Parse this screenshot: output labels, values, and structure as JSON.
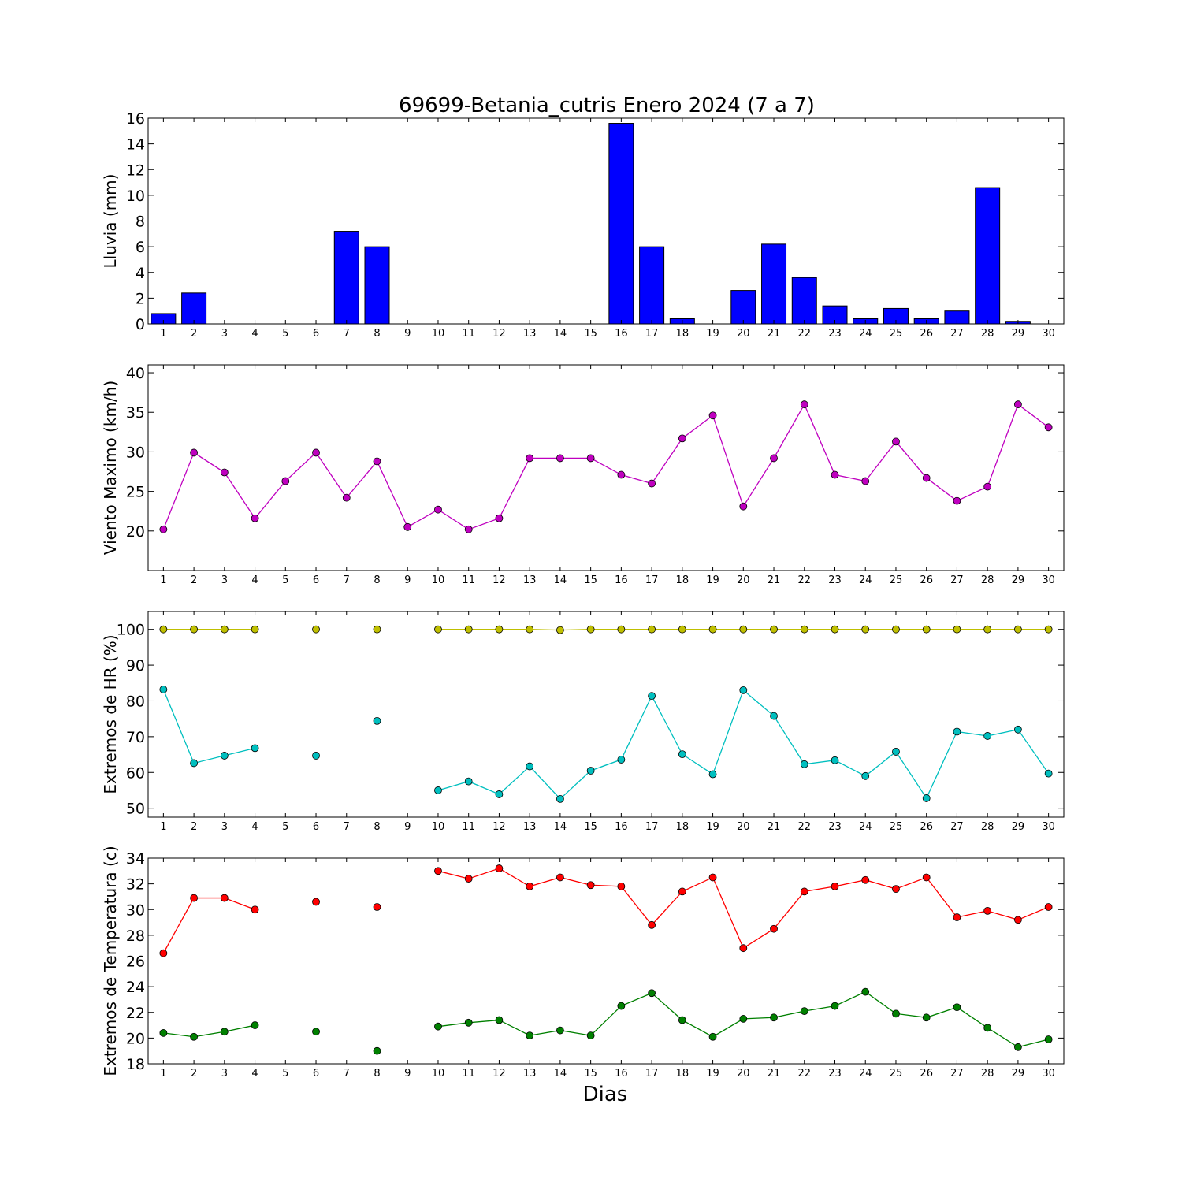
{
  "chart_data": {
    "title": "69699-Betania_cutris Enero 2024  (7 a 7)",
    "xlabel": "Dias",
    "days": [
      1,
      2,
      3,
      4,
      5,
      6,
      7,
      8,
      9,
      10,
      11,
      12,
      13,
      14,
      15,
      16,
      17,
      18,
      19,
      20,
      21,
      22,
      23,
      24,
      25,
      26,
      27,
      28,
      29,
      30
    ],
    "panels": [
      {
        "id": "lluvia",
        "type": "bar",
        "ylabel": "Lluvia (mm)",
        "ylim": [
          0,
          16
        ],
        "yticks": [
          0,
          2,
          4,
          6,
          8,
          10,
          12,
          14,
          16
        ],
        "series": [
          {
            "color": "#0000ff",
            "values": [
              0.8,
              2.4,
              0,
              0,
              0,
              0,
              7.2,
              6.0,
              0,
              0,
              0,
              0,
              0,
              0,
              0,
              15.6,
              6.0,
              0.4,
              0,
              2.6,
              6.2,
              3.6,
              1.4,
              0.4,
              1.2,
              0.4,
              1.0,
              10.6,
              0.2,
              0
            ]
          }
        ]
      },
      {
        "id": "viento",
        "type": "line",
        "ylabel": "Viento Maximo (km/h)",
        "ylim": [
          15,
          41
        ],
        "yticks": [
          20,
          25,
          30,
          35,
          40
        ],
        "series": [
          {
            "color": "#bf00bf",
            "values": [
              20.2,
              29.9,
              27.4,
              21.6,
              26.3,
              29.9,
              24.2,
              28.8,
              20.5,
              22.7,
              20.2,
              21.6,
              29.2,
              29.2,
              29.2,
              27.1,
              26.0,
              31.7,
              34.6,
              23.1,
              29.2,
              36.0,
              27.1,
              26.3,
              31.3,
              26.7,
              23.8,
              25.6,
              36.0,
              33.1
            ]
          }
        ]
      },
      {
        "id": "hr",
        "type": "line",
        "ylabel": "Extremos de HR (%)",
        "ylim": [
          47.5,
          105
        ],
        "yticks": [
          50,
          60,
          70,
          80,
          90,
          100
        ],
        "series": [
          {
            "color": "#bfbf00",
            "values": [
              100,
              100,
              100,
              100,
              null,
              100,
              null,
              100,
              null,
              100,
              100,
              100,
              100,
              99.8,
              100,
              100,
              100,
              100,
              100,
              100,
              100,
              100,
              100,
              100,
              100,
              100,
              100,
              100,
              100,
              100
            ]
          },
          {
            "color": "#00bfbf",
            "values": [
              83.2,
              62.6,
              64.7,
              66.8,
              null,
              64.7,
              null,
              74.4,
              null,
              55.0,
              57.5,
              53.9,
              61.7,
              52.6,
              60.5,
              63.6,
              81.4,
              65.1,
              59.5,
              83.0,
              75.8,
              62.3,
              63.4,
              59.0,
              65.8,
              52.8,
              71.4,
              70.2,
              72.0,
              59.7
            ]
          }
        ]
      },
      {
        "id": "temp",
        "type": "line",
        "ylabel": "Extremos de Temperatura (c)",
        "ylim": [
          18,
          34
        ],
        "yticks": [
          18,
          20,
          22,
          24,
          26,
          28,
          30,
          32,
          34
        ],
        "series": [
          {
            "color": "#ff0000",
            "values": [
              26.6,
              30.9,
              30.9,
              30.0,
              null,
              30.6,
              null,
              30.2,
              null,
              33.0,
              32.4,
              33.2,
              31.8,
              32.5,
              31.9,
              31.8,
              28.8,
              31.4,
              32.5,
              27.0,
              28.5,
              31.4,
              31.8,
              32.3,
              31.6,
              32.5,
              29.4,
              29.9,
              29.2,
              30.2
            ]
          },
          {
            "color": "#008000",
            "values": [
              20.4,
              20.1,
              20.5,
              21.0,
              null,
              20.5,
              null,
              19.0,
              null,
              20.9,
              21.2,
              21.4,
              20.2,
              20.6,
              20.2,
              22.5,
              23.5,
              21.4,
              20.1,
              21.5,
              21.6,
              22.1,
              22.5,
              23.6,
              21.9,
              21.6,
              22.4,
              20.8,
              19.3,
              19.9
            ]
          }
        ]
      }
    ]
  }
}
